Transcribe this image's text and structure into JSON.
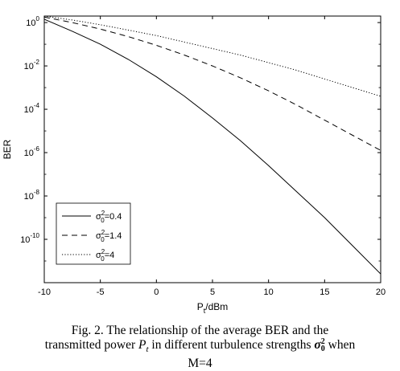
{
  "chart_data": {
    "type": "line",
    "xlabel": "P",
    "xlabel_sub": "t",
    "xlabel_unit": "/dBm",
    "ylabel": "BER",
    "xlim": [
      -10,
      20
    ],
    "ylim_log10": [
      -12,
      0.3
    ],
    "yscale": "log",
    "x_ticks": [
      "-10",
      "-5",
      "0",
      "5",
      "10",
      "15",
      "20"
    ],
    "y_ticks": [
      {
        "base": "10",
        "exp": "0",
        "log10": 0
      },
      {
        "base": "10",
        "exp": "-2",
        "log10": -2
      },
      {
        "base": "10",
        "exp": "-4",
        "log10": -4
      },
      {
        "base": "10",
        "exp": "-6",
        "log10": -6
      },
      {
        "base": "10",
        "exp": "-8",
        "log10": -8
      },
      {
        "base": "10",
        "exp": "-10",
        "log10": -10
      }
    ],
    "grid": false,
    "legend_position": "bottom-left",
    "series": [
      {
        "name": "=0.4",
        "sigma_symbol": "σ",
        "sup": "2",
        "sub": "0",
        "style": "solid",
        "x": [
          -10,
          -7.5,
          -5,
          -2.5,
          0,
          2.5,
          5,
          7.5,
          10,
          12.5,
          15,
          17.5,
          20
        ],
        "log10_y": [
          0.15,
          -0.4,
          -1.0,
          -1.7,
          -2.5,
          -3.4,
          -4.4,
          -5.45,
          -6.6,
          -7.8,
          -9.0,
          -10.3,
          -11.6
        ]
      },
      {
        "name": "=1.4",
        "sigma_symbol": "σ",
        "sup": "2",
        "sub": "0",
        "style": "dashed",
        "x": [
          -10,
          -7.5,
          -5,
          -2.5,
          0,
          2.5,
          5,
          7.5,
          10,
          12.5,
          15,
          17.5,
          20
        ],
        "log10_y": [
          0.25,
          0.0,
          -0.3,
          -0.65,
          -1.05,
          -1.5,
          -2.0,
          -2.55,
          -3.15,
          -3.8,
          -4.5,
          -5.2,
          -5.9
        ]
      },
      {
        "name": "=4",
        "sigma_symbol": "σ",
        "sup": "2",
        "sub": "0",
        "style": "dotted",
        "x": [
          -10,
          -7.5,
          -5,
          -2.5,
          0,
          2.5,
          5,
          7.5,
          10,
          12.5,
          15,
          17.5,
          20
        ],
        "log10_y": [
          0.3,
          0.12,
          -0.1,
          -0.35,
          -0.6,
          -0.9,
          -1.2,
          -1.5,
          -1.85,
          -2.2,
          -2.6,
          -3.0,
          -3.4
        ]
      }
    ]
  },
  "caption": {
    "line1": "Fig. 2. The relationship of the average BER and the",
    "line2_prefix": "transmitted power ",
    "line2_var": "P",
    "line2_var_sub": "t",
    "line2_mid": " in different turbulence strengths ",
    "line2_sym": "σ",
    "line2_sym_sup": "2",
    "line2_sym_sub": "0",
    "line2_suffix": " when",
    "line3": "M=4"
  }
}
